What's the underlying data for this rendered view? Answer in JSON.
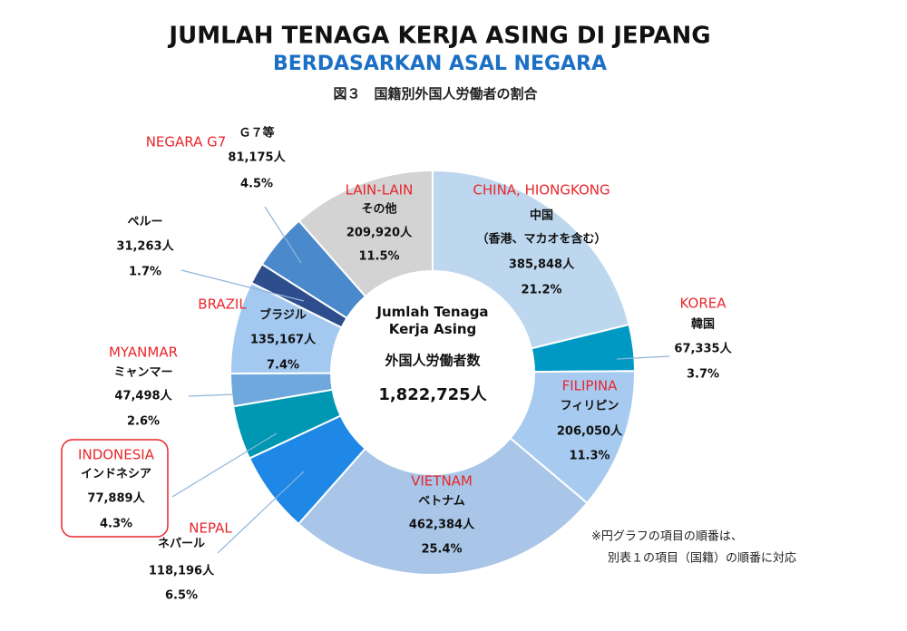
{
  "chart_data": {
    "type": "donut",
    "title": "JUMLAH TENAGA KERJA ASING DI JEPANG",
    "subtitle": "BERDASARKAN ASAL NEGARA",
    "figure_title": "図３　国籍別外国人労働者の割合",
    "center_label": "Jumlah Tenaga Kerja Asing",
    "center_label_jp": "外国人労働者数",
    "center_total": "1,822,725人",
    "note": [
      "※円グラフの項目の順番は、",
      "別表１の項目（国籍）の順番に対応"
    ],
    "categories": [
      "CHINA, HIONGKONG",
      "KOREA",
      "FILIPINA",
      "VIETNAM",
      "NEPAL",
      "INDONESIA",
      "MYANMAR",
      "BRAZIL",
      null,
      "NEGARA G7",
      "LAIN-LAIN"
    ],
    "jp_names": [
      "中国",
      "韓国",
      "フィリピン",
      "ベトナム",
      "ネパール",
      "インドネシア",
      "ミャンマー",
      "ブラジル",
      "ペルー",
      "Ｇ７等",
      "その他"
    ],
    "china_note": "（香港、マカオを含む）",
    "count_labels": [
      "385,848人",
      "67,335人",
      "206,050人",
      "462,384人",
      "118,196人",
      "77,889人",
      "47,498人",
      "135,167人",
      "31,263人",
      "81,175人",
      "209,920人"
    ],
    "values": [
      21.2,
      3.7,
      11.3,
      25.4,
      6.5,
      4.3,
      2.6,
      7.4,
      1.7,
      4.5,
      11.5
    ],
    "value_labels": [
      "21.2%",
      "3.7%",
      "11.3%",
      "25.4%",
      "6.5%",
      "4.3%",
      "2.6%",
      "7.4%",
      "1.7%",
      "4.5%",
      "11.5%"
    ],
    "colors": [
      "#bdd7ee",
      "#0099c4",
      "#a7cbf0",
      "#a9c6e8",
      "#1f88e6",
      "#0097b2",
      "#6fa8dc",
      "#a3c9f0",
      "#2e4d8c",
      "#4a89cc",
      "#d3d3d3"
    ]
  }
}
